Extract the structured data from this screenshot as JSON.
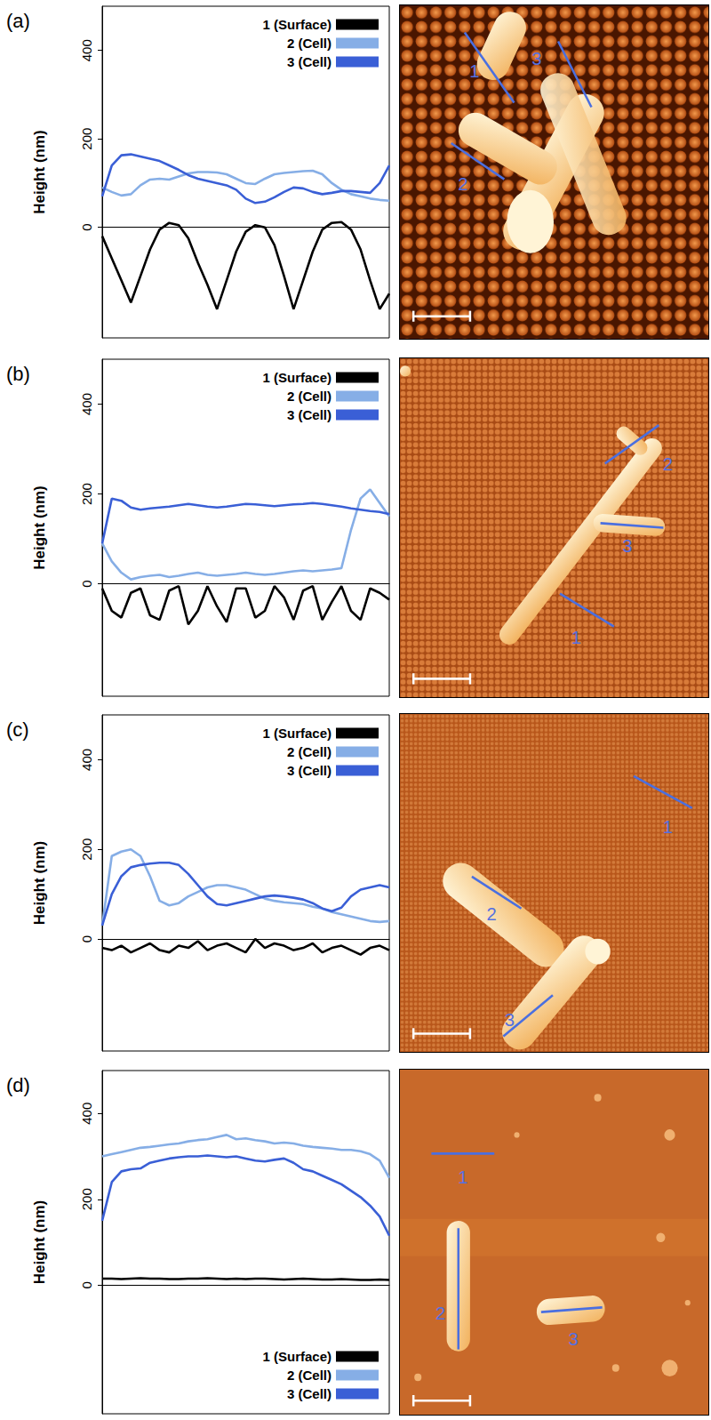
{
  "chart_data": [
    {
      "type": "line",
      "title": "(a)",
      "ylabel": "Height (nm)",
      "tick_labels": "y",
      "grid": false,
      "legend": "upper right",
      "x": [
        0,
        1,
        2,
        3,
        4,
        5,
        6,
        7,
        8,
        9,
        10,
        11,
        12,
        13,
        14,
        15,
        16,
        17,
        18,
        19,
        20,
        21,
        22,
        23,
        24,
        25,
        26,
        27,
        28,
        29,
        30
      ],
      "xlim": [
        0,
        30
      ],
      "ylim": [
        -250,
        500
      ],
      "yticks": [
        0,
        200,
        400
      ],
      "series": [
        {
          "name": "1 (Surface)",
          "color": "#000000",
          "line_style": "solid",
          "values": [
            -20,
            -70,
            -120,
            -170,
            -110,
            -50,
            -5,
            10,
            5,
            -25,
            -80,
            -130,
            -185,
            -120,
            -55,
            -10,
            5,
            0,
            -40,
            -110,
            -185,
            -120,
            -55,
            -5,
            10,
            12,
            -5,
            -50,
            -120,
            -185,
            -150
          ]
        },
        {
          "name": "2 (Cell)",
          "color": "#86aee6",
          "line_style": "solid",
          "values": [
            90,
            80,
            72,
            75,
            95,
            108,
            110,
            108,
            115,
            122,
            125,
            125,
            124,
            120,
            110,
            100,
            98,
            110,
            120,
            123,
            125,
            127,
            128,
            120,
            100,
            85,
            75,
            70,
            65,
            62,
            60
          ]
        },
        {
          "name": "3 (Cell)",
          "color": "#3a5fd6",
          "line_style": "solid",
          "values": [
            70,
            140,
            163,
            165,
            160,
            155,
            150,
            140,
            130,
            118,
            110,
            105,
            100,
            95,
            85,
            65,
            55,
            58,
            68,
            80,
            90,
            88,
            80,
            75,
            78,
            82,
            82,
            80,
            78,
            100,
            140
          ]
        }
      ]
    },
    {
      "type": "line",
      "title": "(b)",
      "ylabel": "Height (nm)",
      "tick_labels": "y",
      "grid": false,
      "legend": "upper right",
      "x": [
        0,
        1,
        2,
        3,
        4,
        5,
        6,
        7,
        8,
        9,
        10,
        11,
        12,
        13,
        14,
        15,
        16,
        17,
        18,
        19,
        20,
        21,
        22,
        23,
        24,
        25,
        26,
        27,
        28,
        29,
        30
      ],
      "xlim": [
        0,
        30
      ],
      "ylim": [
        -250,
        500
      ],
      "yticks": [
        0,
        200,
        400
      ],
      "series": [
        {
          "name": "1 (Surface)",
          "color": "#000000",
          "line_style": "solid",
          "values": [
            -10,
            -60,
            -75,
            -20,
            -10,
            -70,
            -80,
            -15,
            -5,
            -90,
            -60,
            -5,
            -50,
            -85,
            -10,
            -10,
            -75,
            -60,
            -5,
            -30,
            -80,
            -15,
            -5,
            -80,
            -40,
            -5,
            -60,
            -80,
            -10,
            -20,
            -35
          ]
        },
        {
          "name": "2 (Cell)",
          "color": "#86aee6",
          "line_style": "solid",
          "values": [
            90,
            50,
            25,
            10,
            15,
            18,
            20,
            15,
            18,
            22,
            25,
            20,
            18,
            20,
            22,
            25,
            22,
            20,
            22,
            25,
            28,
            30,
            28,
            30,
            32,
            35,
            120,
            190,
            210,
            180,
            150
          ]
        },
        {
          "name": "3 (Cell)",
          "color": "#3a5fd6",
          "line_style": "solid",
          "values": [
            90,
            190,
            185,
            170,
            165,
            168,
            170,
            172,
            175,
            178,
            175,
            172,
            170,
            172,
            175,
            178,
            177,
            175,
            173,
            175,
            177,
            178,
            180,
            178,
            175,
            172,
            168,
            165,
            162,
            160,
            155
          ]
        }
      ]
    },
    {
      "type": "line",
      "title": "(c)",
      "ylabel": "Height (nm)",
      "tick_labels": "y",
      "grid": false,
      "legend": "upper right",
      "x": [
        0,
        1,
        2,
        3,
        4,
        5,
        6,
        7,
        8,
        9,
        10,
        11,
        12,
        13,
        14,
        15,
        16,
        17,
        18,
        19,
        20,
        21,
        22,
        23,
        24,
        25,
        26,
        27,
        28,
        29,
        30
      ],
      "xlim": [
        0,
        30
      ],
      "ylim": [
        -250,
        500
      ],
      "yticks": [
        0,
        200,
        400
      ],
      "series": [
        {
          "name": "1 (Surface)",
          "color": "#000000",
          "line_style": "solid",
          "values": [
            -20,
            -25,
            -15,
            -30,
            -20,
            -10,
            -25,
            -30,
            -15,
            -20,
            -5,
            -25,
            -15,
            -10,
            -20,
            -30,
            0,
            -20,
            -10,
            -15,
            -25,
            -20,
            -10,
            -30,
            -20,
            -15,
            -25,
            -35,
            -20,
            -15,
            -25
          ]
        },
        {
          "name": "2 (Cell)",
          "color": "#86aee6",
          "line_style": "solid",
          "values": [
            30,
            185,
            195,
            200,
            185,
            140,
            85,
            75,
            80,
            95,
            105,
            115,
            120,
            120,
            115,
            110,
            100,
            90,
            85,
            82,
            80,
            78,
            72,
            68,
            60,
            55,
            50,
            45,
            40,
            38,
            40
          ]
        },
        {
          "name": "3 (Cell)",
          "color": "#3a5fd6",
          "line_style": "solid",
          "values": [
            30,
            100,
            140,
            160,
            165,
            168,
            170,
            170,
            165,
            145,
            120,
            95,
            78,
            75,
            80,
            85,
            90,
            95,
            97,
            95,
            92,
            88,
            80,
            68,
            62,
            70,
            95,
            110,
            115,
            120,
            115
          ]
        }
      ]
    },
    {
      "type": "line",
      "title": "(d)",
      "ylabel": "Height (nm)",
      "tick_labels": "y",
      "grid": false,
      "legend": "lower right",
      "x": [
        0,
        1,
        2,
        3,
        4,
        5,
        6,
        7,
        8,
        9,
        10,
        11,
        12,
        13,
        14,
        15,
        16,
        17,
        18,
        19,
        20,
        21,
        22,
        23,
        24,
        25,
        26,
        27,
        28,
        29,
        30
      ],
      "xlim": [
        0,
        30
      ],
      "ylim": [
        -300,
        500
      ],
      "yticks": [
        0,
        200,
        400
      ],
      "series": [
        {
          "name": "1 (Surface)",
          "color": "#000000",
          "line_style": "solid",
          "values": [
            15,
            15,
            14,
            15,
            16,
            15,
            15,
            14,
            14,
            15,
            15,
            16,
            15,
            14,
            15,
            14,
            15,
            15,
            14,
            13,
            14,
            15,
            14,
            13,
            13,
            14,
            13,
            12,
            12,
            13,
            12
          ]
        },
        {
          "name": "2 (Cell)",
          "color": "#86aee6",
          "line_style": "solid",
          "values": [
            300,
            305,
            310,
            315,
            320,
            322,
            325,
            328,
            330,
            335,
            338,
            340,
            345,
            350,
            340,
            342,
            338,
            335,
            330,
            332,
            330,
            325,
            322,
            320,
            318,
            315,
            315,
            312,
            305,
            290,
            250
          ]
        },
        {
          "name": "3 (Cell)",
          "color": "#3a5fd6",
          "line_style": "solid",
          "values": [
            150,
            240,
            265,
            270,
            272,
            285,
            290,
            295,
            298,
            300,
            300,
            302,
            300,
            298,
            300,
            295,
            290,
            288,
            292,
            295,
            285,
            270,
            265,
            255,
            245,
            235,
            220,
            205,
            185,
            160,
            115
          ]
        }
      ]
    }
  ],
  "micrographs": [
    {
      "labels": [
        "1",
        "2",
        "3"
      ]
    },
    {
      "labels": [
        "1",
        "2",
        "3"
      ]
    },
    {
      "labels": [
        "1",
        "2",
        "3"
      ]
    },
    {
      "labels": [
        "1",
        "2",
        "3"
      ]
    }
  ]
}
